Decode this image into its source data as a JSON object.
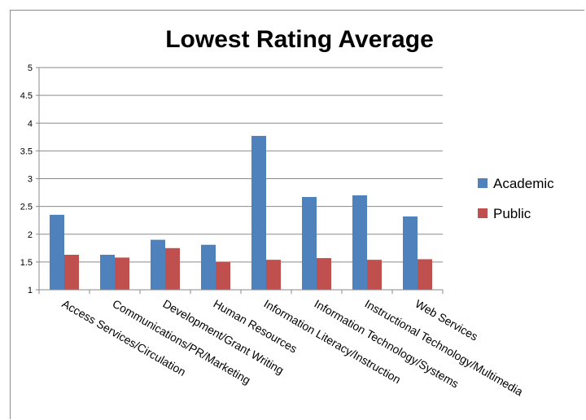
{
  "chart_data": {
    "type": "bar",
    "title": "Lowest Rating Average",
    "xlabel": "",
    "ylabel": "",
    "ylim": [
      1,
      5
    ],
    "yticks": [
      "1",
      "1.5",
      "2",
      "2.5",
      "3",
      "3.5",
      "4",
      "4.5",
      "5"
    ],
    "grid": true,
    "legend_position": "right",
    "categories": [
      "Access Services/Circulation",
      "Communications/PR/Marketing",
      "Development/Grant Writing",
      "Human Resources",
      "Information Literacy/Instruction",
      "Information Technology/Systems",
      "Instructional Technology/Multimedia",
      "Web Services"
    ],
    "series": [
      {
        "name": "Academic",
        "color": "#4f81bd",
        "values": [
          2.35,
          1.63,
          1.9,
          1.81,
          3.77,
          2.67,
          2.7,
          2.32
        ]
      },
      {
        "name": "Public",
        "color": "#c0504d",
        "values": [
          1.63,
          1.58,
          1.75,
          1.5,
          1.54,
          1.57,
          1.54,
          1.55
        ]
      }
    ]
  }
}
